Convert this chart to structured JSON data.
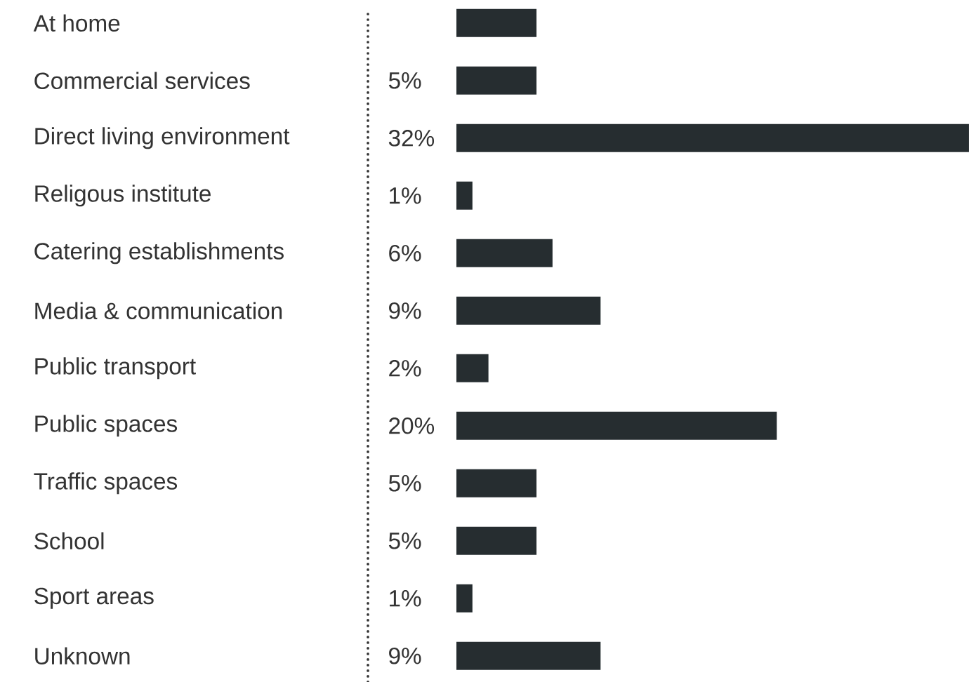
{
  "chart_data": {
    "type": "bar",
    "orientation": "horizontal",
    "color": "#262d30",
    "categories": [
      "At home",
      "Commercial services",
      "Direct living environment",
      "Religous institute",
      "Catering establishments",
      "Media & communication",
      "Public transport",
      "Public spaces",
      "Traffic spaces",
      "School",
      "Sport areas",
      "Unknown"
    ],
    "values": [
      5,
      5,
      32,
      1,
      6,
      9,
      2,
      20,
      5,
      5,
      1,
      9
    ],
    "value_labels": [
      null,
      "5%",
      "32%",
      "1%",
      "6%",
      "9%",
      "2%",
      "20%",
      "5%",
      "5%",
      "1%",
      "9%"
    ]
  }
}
